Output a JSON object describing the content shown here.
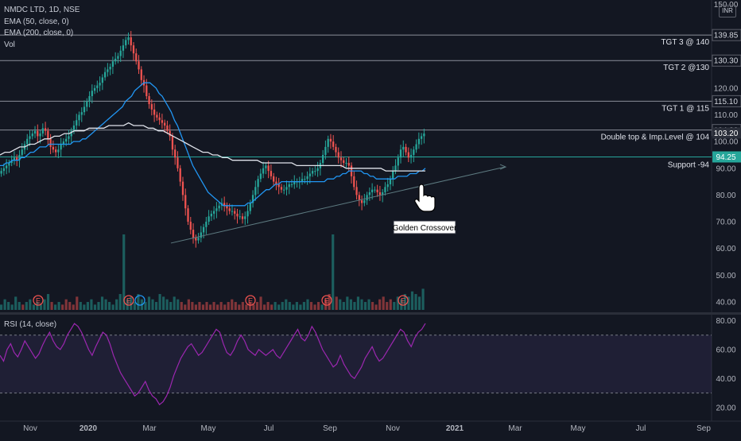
{
  "chart_data": {
    "type": "line",
    "title": "NMDC LTD, 1D, NSE",
    "legend": [
      "NMDC LTD, 1D, NSE",
      "EMA (50, close, 0)",
      "EMA (200, close, 0)",
      "Vol"
    ],
    "currency": "INR",
    "price_axis": {
      "ticks": [
        40,
        50,
        60,
        70,
        80,
        90,
        100,
        110,
        120,
        130,
        140,
        150
      ],
      "top_label": "150.00",
      "ylim": [
        37,
        150
      ]
    },
    "rsi": {
      "label": "RSI (14, close)",
      "ticks": [
        20,
        40,
        60,
        80
      ],
      "ylim": [
        15,
        83
      ],
      "bands": [
        30,
        70
      ]
    },
    "x_axis": {
      "labels": [
        "Nov",
        "2020",
        "Mar",
        "May",
        "Jul",
        "Sep",
        "Nov",
        "2021",
        "Mar",
        "May",
        "Jul",
        "Sep"
      ]
    },
    "levels": [
      {
        "value": 139.85,
        "label": "139.85",
        "annotation": "TGT 3 @ 140",
        "color": "#8a8e99"
      },
      {
        "value": 130.3,
        "label": "130.30",
        "annotation": "TGT 2 @130",
        "color": "#8a8e99"
      },
      {
        "value": 115.1,
        "label": "115.10",
        "annotation": "TGT 1 @ 115",
        "color": "#8a8e99"
      },
      {
        "value": 104.3,
        "label": "104.30",
        "annotation": "Double top & Imp.Level @  104",
        "color": "#8a8e99"
      },
      {
        "value": 94.25,
        "label": "94.25",
        "annotation": "Support -94",
        "color": "#26a69a"
      }
    ],
    "last_price": {
      "value": 103.2,
      "label": "103.20",
      "color": "#26a69a"
    },
    "callout": "Golden Crossover",
    "earnings_marker": "E",
    "trendline": {
      "from": [
        "Mar",
        62
      ],
      "to": [
        "Dec",
        90.5
      ]
    },
    "close": [
      89,
      90,
      91,
      92,
      93,
      94,
      93,
      95,
      97,
      99,
      101,
      102,
      103,
      104,
      102,
      103,
      105,
      104,
      101,
      98,
      97,
      96,
      97,
      99,
      100,
      101,
      102,
      104,
      106,
      108,
      110,
      111,
      113,
      115,
      117,
      119,
      120,
      121,
      122,
      124,
      126,
      127,
      128,
      130,
      131,
      132,
      134,
      136,
      138,
      139,
      136,
      133,
      130,
      127,
      123,
      121,
      117,
      114,
      112,
      110,
      109,
      108,
      107,
      106,
      104,
      102,
      97,
      94,
      90,
      85,
      80,
      75,
      70,
      67,
      64,
      63,
      64,
      66,
      68,
      70,
      72,
      73,
      74,
      75,
      76,
      77,
      76,
      75,
      74,
      74,
      73,
      72,
      72,
      71,
      72,
      74,
      77,
      80,
      83,
      86,
      88,
      90,
      91,
      89,
      87,
      85,
      84,
      83,
      82,
      82,
      83,
      84,
      84,
      85,
      85,
      85,
      86,
      86,
      87,
      88,
      89,
      89,
      90,
      92,
      95,
      98,
      101,
      100,
      98,
      96,
      94,
      93,
      92,
      92,
      91,
      87,
      83,
      80,
      78,
      77,
      78,
      80,
      81,
      82,
      82,
      81,
      80,
      81,
      83,
      84,
      86,
      89,
      91,
      94,
      97,
      98,
      96,
      94,
      95,
      97,
      99,
      101,
      102,
      103
    ],
    "ema50": [
      91,
      91,
      92,
      92,
      93,
      93,
      93,
      94,
      94,
      95,
      96,
      96,
      97,
      98,
      98,
      98,
      99,
      99,
      99,
      99,
      99,
      99,
      99,
      99,
      100,
      100,
      100,
      101,
      101,
      102,
      103,
      104,
      105,
      106,
      107,
      108,
      109,
      110,
      111,
      112,
      113,
      115,
      116,
      117,
      119,
      120,
      121,
      122,
      122,
      122,
      121,
      120,
      118,
      117,
      115,
      113,
      111,
      108,
      106,
      103,
      100,
      97,
      94,
      91,
      89,
      87,
      85,
      83,
      81,
      80,
      79,
      78,
      77,
      76,
      76,
      76,
      76,
      76,
      76,
      76,
      76,
      77,
      77,
      78,
      79,
      80,
      81,
      82,
      82,
      83,
      84,
      84,
      85,
      85,
      85,
      85,
      85,
      85,
      85,
      85,
      85,
      85,
      85,
      85,
      85,
      85,
      85,
      86,
      86,
      86,
      87,
      87,
      88,
      88,
      89,
      89,
      89,
      89,
      89,
      88,
      88,
      87,
      87,
      86,
      86,
      86,
      86,
      86,
      86,
      86,
      87,
      87,
      87,
      87,
      88,
      88,
      88,
      89,
      89,
      90
    ],
    "ema200": [
      95,
      96,
      96,
      97,
      98,
      98,
      99,
      99,
      100,
      101,
      101,
      102,
      102,
      103,
      103,
      104,
      104,
      104,
      105,
      105,
      105,
      105,
      106,
      106,
      106,
      106,
      107,
      106,
      106,
      106,
      105,
      105,
      104,
      104,
      103,
      102,
      101,
      100,
      99,
      98,
      97,
      96,
      96,
      95,
      95,
      94,
      94,
      93,
      93,
      93,
      93,
      93,
      93,
      92,
      92,
      92,
      92,
      92,
      92,
      92,
      91,
      91,
      91,
      91,
      91,
      91,
      91,
      91,
      91,
      91,
      90,
      90,
      90,
      90,
      90,
      90,
      90,
      90,
      89,
      89,
      89,
      89,
      89,
      89,
      89,
      89,
      89
    ],
    "rsi_values": [
      56,
      52,
      60,
      64,
      58,
      55,
      60,
      66,
      62,
      58,
      54,
      57,
      63,
      68,
      72,
      66,
      62,
      60,
      64,
      70,
      74,
      78,
      76,
      72,
      66,
      60,
      56,
      62,
      67,
      72,
      70,
      64,
      56,
      50,
      44,
      40,
      36,
      32,
      28,
      30,
      34,
      38,
      32,
      28,
      26,
      22,
      24,
      28,
      34,
      42,
      48,
      54,
      58,
      62,
      64,
      60,
      56,
      58,
      62,
      66,
      70,
      74,
      72,
      64,
      58,
      56,
      60,
      66,
      70,
      66,
      60,
      58,
      56,
      60,
      58,
      56,
      58,
      60,
      56,
      54,
      58,
      62,
      66,
      70,
      74,
      68,
      66,
      70,
      76,
      72,
      66,
      60,
      56,
      52,
      48,
      50,
      56,
      50,
      46,
      42,
      40,
      44,
      48,
      54,
      58,
      62,
      56,
      52,
      54,
      58,
      62,
      66,
      70,
      74,
      72,
      66,
      62,
      68,
      72,
      74,
      78
    ],
    "volume_rel": [
      0.2,
      0.4,
      0.3,
      0.2,
      0.5,
      0.3,
      0.2,
      0.3,
      0.4,
      0.2,
      0.3,
      0.2,
      0.4,
      0.6,
      0.3,
      0.2,
      0.3,
      0.2,
      0.4,
      0.3,
      0.2,
      0.5,
      0.3,
      0.2,
      0.3,
      0.4,
      0.2,
      0.3,
      0.5,
      0.4,
      0.3,
      0.2,
      0.4,
      0.6,
      1.0,
      0.4,
      0.5,
      0.3,
      0.6,
      0.4,
      0.3,
      0.5,
      0.4,
      0.3,
      0.6,
      0.5,
      0.4,
      0.3,
      0.5,
      0.4,
      0.3,
      0.2,
      0.4,
      0.3,
      0.2,
      0.3,
      0.2,
      0.3,
      0.2,
      0.3,
      0.2,
      0.3,
      0.2,
      0.3,
      0.4,
      0.3,
      0.2,
      0.3,
      0.2,
      0.3,
      0.2,
      0.3,
      0.5,
      0.2,
      0.3,
      0.2,
      0.3,
      0.2,
      0.3,
      0.4,
      0.3,
      0.2,
      0.3,
      0.2,
      0.3,
      0.4,
      0.3,
      0.2,
      0.3,
      0.2,
      0.4,
      0.6,
      1.0,
      0.5,
      0.4,
      0.3,
      0.5,
      0.4,
      0.3,
      0.5,
      0.4,
      0.3,
      0.4,
      0.3,
      0.2,
      0.4,
      0.5,
      0.3,
      0.4,
      0.3,
      0.5,
      0.4,
      0.6,
      0.5,
      0.7,
      0.6,
      0.5,
      0.8
    ]
  }
}
